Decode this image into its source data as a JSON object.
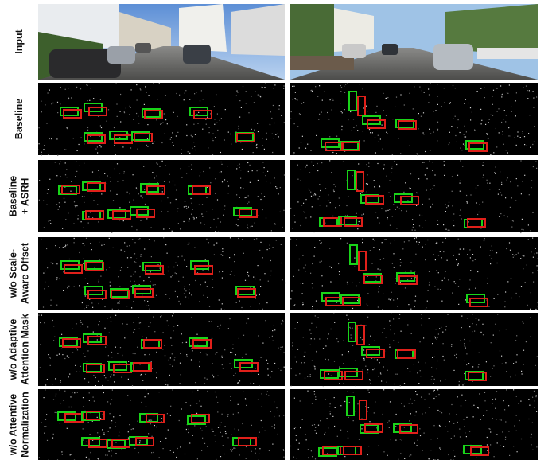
{
  "rows": [
    {
      "label": [
        "Input"
      ]
    },
    {
      "label": [
        "Baseline"
      ]
    },
    {
      "label": [
        "Baseline",
        "+ ASRH"
      ]
    },
    {
      "label": [
        "w/o Scale-",
        "Aware Offset"
      ]
    },
    {
      "label": [
        "w/o Adaptive",
        "Attention Mask"
      ]
    },
    {
      "label": [
        "w/o Attentive",
        "Normalization"
      ]
    }
  ]
}
